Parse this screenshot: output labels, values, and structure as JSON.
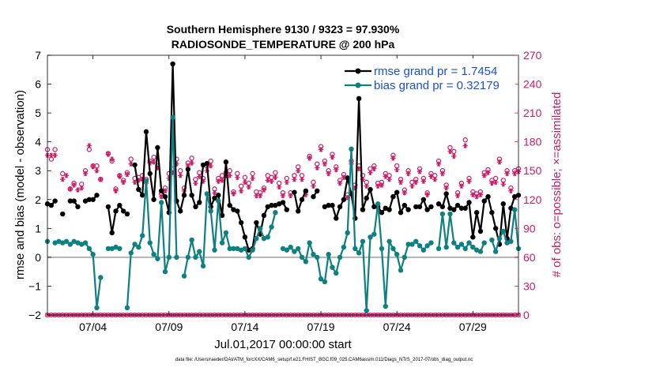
{
  "chart_data": {
    "type": "line",
    "title": "Southern Hemisphere 9130 / 9323 = 97.930%",
    "subtitle": "RADIOSONDE_TEMPERATURE @ 200 hPa",
    "xlabel": "Jul.01,2017 00:00:00 start",
    "ylabel_left": "rmse and bias (model - observation)",
    "ylabel_right": "# of obs: o=possible; ×=assimilated",
    "footnote": "data file: /Users/raeder/DAI/ATM_forcXX/CAM6_setup/f.e21.FHIST_BGC.f09_025.CAM6assim.011/Diags_NTrS_2017-07/obs_diag_output.nc",
    "x_ticks": [
      {
        "day": 4,
        "label": "07/04"
      },
      {
        "day": 9,
        "label": "07/09"
      },
      {
        "day": 14,
        "label": "07/14"
      },
      {
        "day": 19,
        "label": "07/19"
      },
      {
        "day": 24,
        "label": "07/24"
      },
      {
        "day": 29,
        "label": "07/29"
      }
    ],
    "y_left_ticks": [
      -2,
      -1,
      0,
      1,
      2,
      3,
      4,
      5,
      6,
      7
    ],
    "y_right_ticks": [
      0,
      30,
      60,
      90,
      120,
      150,
      180,
      210,
      240,
      270
    ],
    "xlim": [
      1,
      32
    ],
    "ylim_left": [
      -2,
      7
    ],
    "ylim_right": [
      0,
      270
    ],
    "legend": {
      "position": "top-right",
      "rmse_label": "rmse grand pr = 1.7454",
      "bias_label": "bias grand pr = 0.32179"
    },
    "colors": {
      "rmse": "#000000",
      "bias": "#0f8080",
      "obs": "#cc1a66",
      "zero_line": "#b3b3b3",
      "legend_text": "#1a4fd6"
    },
    "x": [
      1.0,
      1.25,
      1.5,
      1.75,
      2.0,
      2.25,
      2.5,
      2.75,
      3.0,
      3.25,
      3.5,
      3.75,
      4.0,
      4.25,
      4.5,
      4.75,
      5.0,
      5.25,
      5.5,
      5.75,
      6.0,
      6.25,
      6.5,
      6.75,
      7.0,
      7.25,
      7.5,
      7.75,
      8.0,
      8.25,
      8.5,
      8.75,
      9.0,
      9.25,
      9.5,
      9.75,
      10.0,
      10.25,
      10.5,
      10.75,
      11.0,
      11.25,
      11.5,
      11.75,
      12.0,
      12.25,
      12.5,
      12.75,
      13.0,
      13.25,
      13.5,
      13.75,
      14.0,
      14.25,
      14.5,
      14.75,
      15.0,
      15.25,
      15.5,
      15.75,
      16.0,
      16.25,
      16.5,
      16.75,
      17.0,
      17.25,
      17.5,
      17.75,
      18.0,
      18.25,
      18.5,
      18.75,
      19.0,
      19.25,
      19.5,
      19.75,
      20.0,
      20.25,
      20.5,
      20.75,
      21.0,
      21.25,
      21.5,
      21.75,
      22.0,
      22.25,
      22.5,
      22.75,
      23.0,
      23.25,
      23.5,
      23.75,
      24.0,
      24.25,
      24.5,
      24.75,
      25.0,
      25.25,
      25.5,
      25.75,
      26.0,
      26.25,
      26.5,
      26.75,
      27.0,
      27.25,
      27.5,
      27.75,
      28.0,
      28.25,
      28.5,
      28.75,
      29.0,
      29.25,
      29.5,
      29.75,
      30.0,
      30.25,
      30.5,
      30.75,
      31.0,
      31.25,
      31.5,
      31.75,
      32.0
    ],
    "series": [
      {
        "name": "rmse",
        "marker": "dot",
        "axis": "left",
        "values": [
          1.85,
          1.8,
          1.95,
          null,
          1.5,
          null,
          1.95,
          1.95,
          1.75,
          null,
          1.95,
          2.0,
          2.0,
          2.15,
          null,
          null,
          1.75,
          0.85,
          1.6,
          1.8,
          1.6,
          1.5,
          null,
          3.2,
          2.35,
          2.15,
          4.35,
          2.9,
          2.0,
          3.8,
          2.3,
          2.1,
          1.55,
          6.7,
          1.95,
          1.6,
          2.15,
          3.05,
          2.15,
          1.75,
          1.9,
          3.2,
          3.25,
          1.75,
          2.05,
          2.15,
          1.45,
          3.3,
          1.8,
          1.65,
          1.6,
          1.2,
          0.7,
          0.25,
          0.3,
          1.2,
          0.8,
          1.45,
          1.75,
          1.8,
          1.8,
          1.85,
          1.9,
          1.65,
          null,
          2.25,
          1.6,
          2.0,
          2.3,
          null,
          2.1,
          2.3,
          null,
          1.75,
          1.8,
          1.8,
          1.35,
          1.75,
          2.0,
          2.75,
          2.2,
          1.35,
          5.5,
          1.65,
          2.05,
          2.35,
          1.75,
          1.75,
          1.55,
          1.7,
          1.65,
          2.1,
          2.25,
          1.55,
          1.8,
          1.65,
          null,
          1.75,
          1.75,
          2.0,
          1.65,
          1.75,
          null,
          1.85,
          1.75,
          2.2,
          1.7,
          1.65,
          1.8,
          1.7,
          1.7,
          1.9,
          0.7,
          1.55,
          0.9,
          1.95,
          2.1,
          1.55,
          1.0,
          0.45,
          1.85,
          0.65,
          1.7,
          2.1,
          2.15
        ]
      },
      {
        "name": "bias",
        "marker": "dot",
        "axis": "left",
        "values": [
          0.55,
          null,
          0.5,
          0.55,
          0.5,
          0.55,
          0.45,
          0.55,
          0.5,
          0.45,
          0.5,
          0.3,
          0.1,
          -1.75,
          -0.7,
          null,
          0.3,
          0.3,
          0.35,
          0.3,
          null,
          -1.75,
          0.15,
          0.45,
          0.35,
          0.75,
          2.65,
          0.5,
          0.1,
          -0.05,
          1.9,
          -0.5,
          0.0,
          4.85,
          0.0,
          null,
          -0.65,
          0.0,
          0.6,
          0.0,
          0.2,
          -0.3,
          2.2,
          1.6,
          0.25,
          1.95,
          0.5,
          0.85,
          0.3,
          0.3,
          0.3,
          0.25,
          0.3,
          0.0,
          0.25,
          0.65,
          1.0,
          0.65,
          0.7,
          1.05,
          1.55,
          null,
          0.3,
          0.25,
          0.35,
          0.2,
          0.3,
          0.0,
          -0.15,
          0.5,
          0.1,
          0.0,
          -0.75,
          -0.85,
          0.1,
          -0.35,
          -0.55,
          0.0,
          0.35,
          0.85,
          3.75,
          0.3,
          0.15,
          0.55,
          -1.85,
          0.7,
          0.8,
          1.85,
          0.3,
          -1.7,
          0.55,
          0.3,
          0.1,
          -0.45,
          0.0,
          0.45,
          0.45,
          0.55,
          0.4,
          0.25,
          0.4,
          0.5,
          null,
          0.3,
          1.5,
          0.35,
          1.5,
          0.5,
          0.35,
          0.45,
          0.3,
          0.5,
          0.35,
          0.25,
          0.2,
          0.5,
          null,
          0.6,
          0.2,
          0.65,
          0.9,
          0.5,
          0.55,
          1.65,
          0.3
        ]
      },
      {
        "name": "obs possible",
        "marker": "circle",
        "axis": "right",
        "values": [
          172,
          162,
          172,
          null,
          147,
          null,
          131,
          137,
          null,
          136,
          150,
          172,
          155,
          155,
          141,
          null,
          168,
          160,
          131,
          145,
          140,
          148,
          162,
          142,
          143,
          145,
          141,
          160,
          164,
          155,
          126,
          132,
          147,
          152,
          162,
          150,
          132,
          158,
          163,
          141,
          148,
          142,
          155,
          160,
          131,
          142,
          145,
          148,
          150,
          128,
          147,
          134,
          143,
          137,
          147,
          128,
          127,
          132,
          145,
          143,
          148,
          137,
          127,
          142,
          127,
          145,
          154,
          145,
          128,
          165,
          138,
          157,
          175,
          160,
          150,
          167,
          154,
          140,
          146,
          125,
          160,
          135,
          155,
          145,
          138,
          152,
          155,
          137,
          138,
          147,
          145,
          166,
          155,
          141,
          130,
          150,
          138,
          141,
          152,
          142,
          127,
          147,
          145,
          160,
          150,
          135,
          174,
          170,
          127,
          137,
          182,
          142,
          128,
          126,
          128,
          148,
          151,
          140,
          142,
          162,
          140,
          150,
          132,
          150,
          152
        ]
      },
      {
        "name": "obs assimilated",
        "marker": "asterisk",
        "axis": "right",
        "values": [
          166,
          166,
          166,
          null,
          141,
          145,
          131,
          135,
          130,
          132,
          147,
          176,
          154,
          150,
          141,
          null,
          167,
          162,
          129,
          144,
          138,
          146,
          157,
          138,
          140,
          141,
          137,
          158,
          159,
          153,
          123,
          129,
          142,
          148,
          157,
          145,
          129,
          155,
          158,
          137,
          144,
          139,
          150,
          155,
          127,
          139,
          140,
          145,
          145,
          126,
          143,
          129,
          138,
          133,
          142,
          124,
          124,
          130,
          140,
          139,
          143,
          133,
          124,
          138,
          124,
          141,
          150,
          141,
          125,
          163,
          134,
          153,
          172,
          157,
          147,
          164,
          151,
          137,
          143,
          122,
          157,
          132,
          152,
          141,
          134,
          148,
          152,
          134,
          135,
          144,
          141,
          163,
          151,
          138,
          127,
          147,
          134,
          138,
          149,
          139,
          125,
          144,
          141,
          157,
          147,
          132,
          170,
          165,
          124,
          134,
          176,
          139,
          125,
          123,
          125,
          145,
          148,
          137,
          138,
          159,
          136,
          147,
          129,
          147,
          149
        ]
      }
    ],
    "low_obs_markers": {
      "note": "small counts near 0 drawn along bottom axis"
    }
  }
}
